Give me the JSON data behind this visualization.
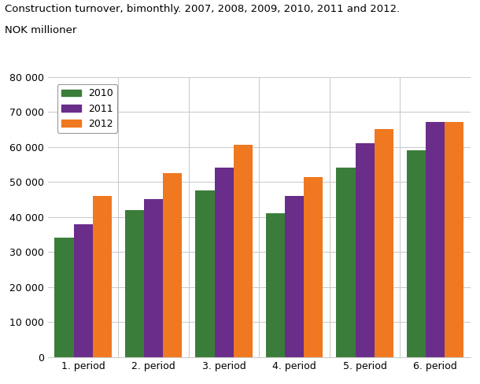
{
  "title_line1": "Construction turnover, bimonthly. 2007, 2008, 2009, 2010, 2011 and 2012.",
  "title_line2": "NOK millioner",
  "categories": [
    "1. period",
    "2. period",
    "3. period",
    "4. period",
    "5. period",
    "6. period"
  ],
  "series": {
    "2010": [
      34000,
      42000,
      47500,
      41000,
      54000,
      59000
    ],
    "2011": [
      38000,
      45000,
      54000,
      46000,
      61000,
      67000
    ],
    "2012": [
      46000,
      52500,
      60500,
      51500,
      65000,
      67000
    ]
  },
  "colors": {
    "2010": "#3a7d3a",
    "2011": "#6a2d8a",
    "2012": "#f07820"
  },
  "ylim": [
    0,
    80000
  ],
  "yticks": [
    0,
    10000,
    20000,
    30000,
    40000,
    50000,
    60000,
    70000,
    80000
  ],
  "ytick_labels": [
    "0",
    "10 000",
    "20 000",
    "30 000",
    "40 000",
    "50 000",
    "60 000",
    "70 000",
    "80 000"
  ],
  "legend_labels": [
    "2010",
    "2011",
    "2012"
  ],
  "bar_width": 0.27,
  "grid_color": "#cccccc",
  "bg_color": "#ffffff"
}
